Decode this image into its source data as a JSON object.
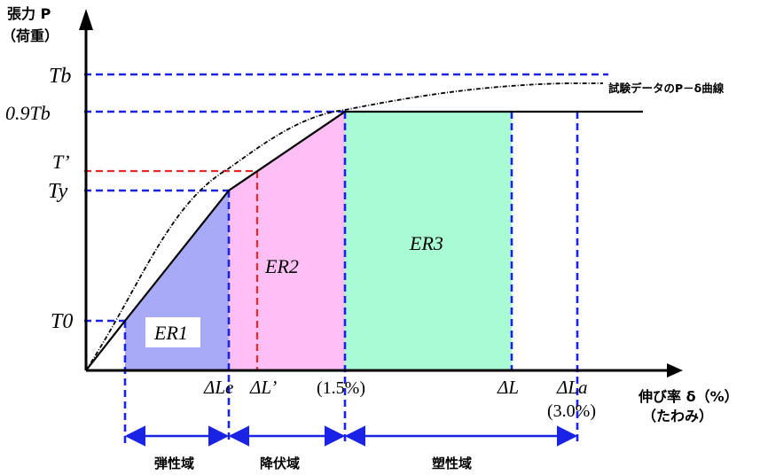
{
  "axes": {
    "y_label": "張力 P",
    "y_label_sub": "（荷重）",
    "x_label": "伸び率 δ（%）",
    "x_label_sub": "（たわみ）"
  },
  "y_ticks": {
    "tb": "Tb",
    "tb09": "0.9Tb",
    "tprime": "T’",
    "ty": "Ty",
    "t0": "T0"
  },
  "x_ticks": {
    "le": "ΔLe",
    "lprime": "ΔL’",
    "pct15": "(1.5%)",
    "l": "ΔL",
    "la": "ΔLa",
    "pct30": "(3.0%)"
  },
  "regions": {
    "er1": "ER1",
    "er2": "ER2",
    "er3": "ER3"
  },
  "zones": {
    "elastic": "弾性域",
    "yield": "降伏域",
    "plastic": "塑性域"
  },
  "curve_label": "試験データのP－δ曲線",
  "colors": {
    "er1_fill": "#a9aaf6",
    "er2_fill": "#fdbff4",
    "er3_fill": "#a9fbd4",
    "guide_blue": "#1a22e6",
    "guide_red": "#e82828",
    "axis": "#000000"
  }
}
